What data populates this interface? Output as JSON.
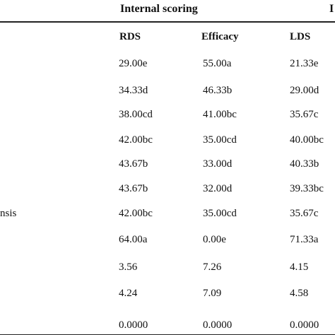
{
  "table": {
    "group_header": "Internal scoring",
    "next_group_header_clipped": "I",
    "columns": [
      "RDS",
      "Efficacy",
      "LDS"
    ],
    "rows": [
      {
        "label": "",
        "values": [
          "29.00e",
          "55.00a",
          "21.33e"
        ]
      },
      {
        "label": "",
        "values": [
          "34.33d",
          "46.33b",
          "29.00d"
        ]
      },
      {
        "label": "",
        "values": [
          "38.00cd",
          "41.00bc",
          "35.67c"
        ]
      },
      {
        "label": "",
        "values": [
          "42.00bc",
          "35.00cd",
          "40.00bc"
        ]
      },
      {
        "label": "",
        "values": [
          "43.67b",
          "33.00d",
          "40.33b"
        ]
      },
      {
        "label": "",
        "values": [
          "43.67b",
          "32.00d",
          "39.33bc"
        ]
      },
      {
        "label": "nsis",
        "values": [
          "42.00bc",
          "35.00cd",
          "35.67c"
        ]
      },
      {
        "label": "",
        "values": [
          "64.00a",
          "0.00e",
          "71.33a"
        ]
      },
      {
        "label": "",
        "values": [
          "3.56",
          "7.26",
          "4.15"
        ]
      },
      {
        "label": "",
        "values": [
          "4.24",
          "7.09",
          "4.58"
        ]
      },
      {
        "label": "",
        "values": [
          "0.0000",
          "0.0000",
          "0.0000"
        ]
      }
    ]
  }
}
